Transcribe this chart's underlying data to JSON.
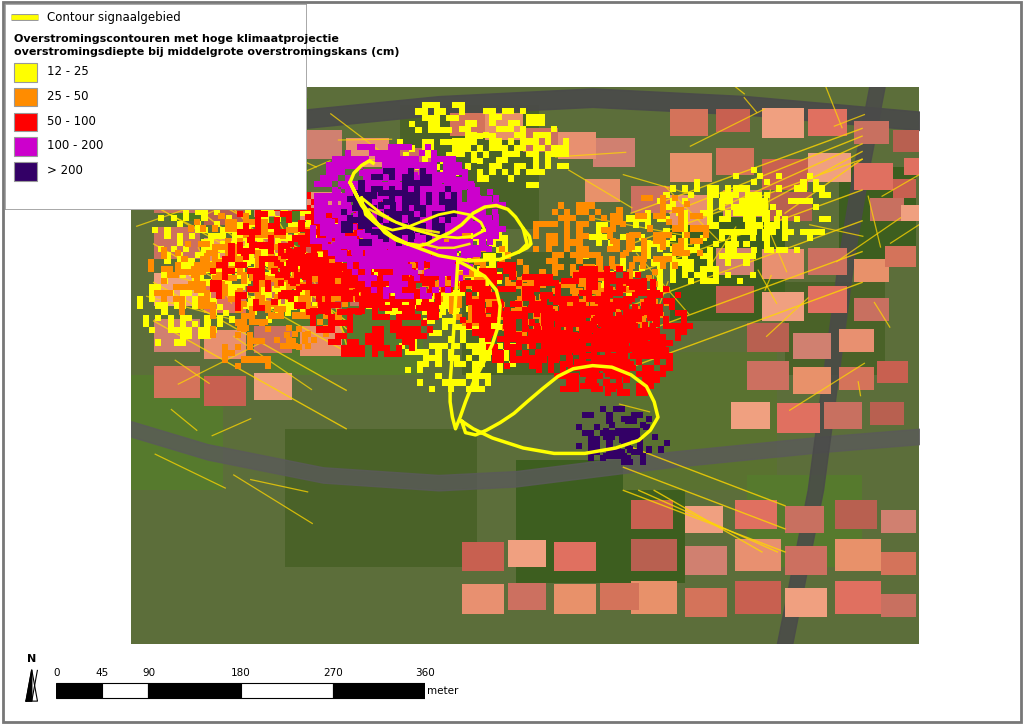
{
  "title": "",
  "legend_title_line1": "Overstromingscontouren met hoge klimaatprojectie",
  "legend_title_line2": "overstromingsdiepte bij middelgrote overstromingskans (cm)",
  "legend_contour_label": "Contour signaalgebied",
  "legend_item_colors": [
    "#FFFF00",
    "#FF8C00",
    "#FF0000",
    "#CC00CC",
    "#330066"
  ],
  "legend_item_labels": [
    "12 - 25",
    "25 - 50",
    "50 - 100",
    "100 - 200",
    "> 200"
  ],
  "contour_line_color": "#FFFF00",
  "scale_bar_ticks": [
    0,
    45,
    90,
    180,
    270,
    360
  ],
  "scale_bar_unit": "meter",
  "background_color": "#5a6e3a",
  "legend_box_color": "#FFFFFF",
  "border_color": "#888888",
  "figsize": [
    10.24,
    7.24
  ],
  "dpi": 100
}
